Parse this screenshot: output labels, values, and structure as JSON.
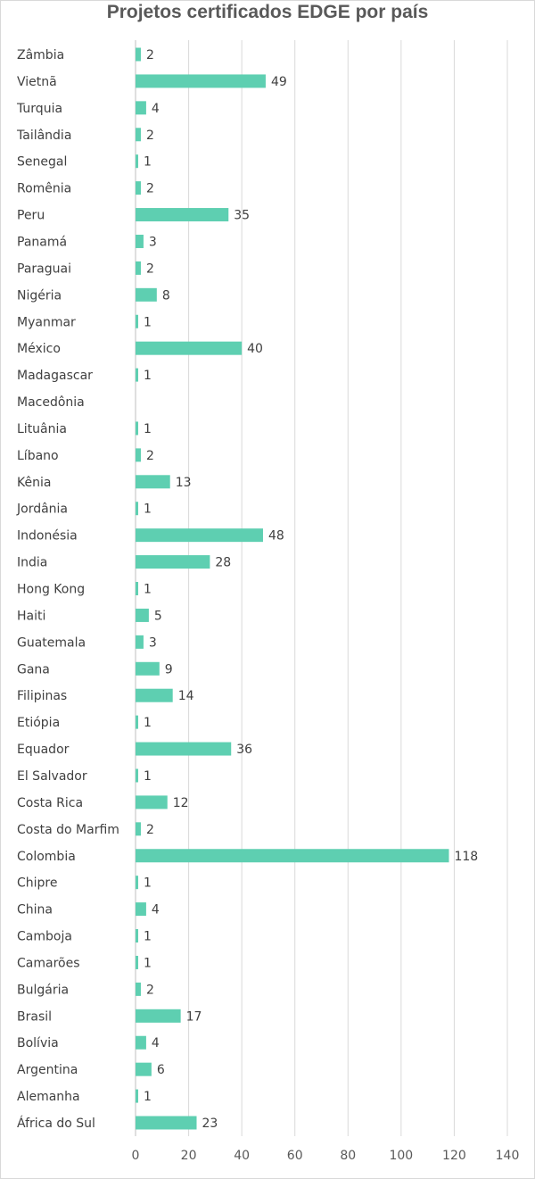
{
  "chart_data": {
    "type": "bar",
    "orientation": "horizontal",
    "title": "Projetos certificados EDGE por país",
    "xlabel": "",
    "ylabel": "",
    "xlim": [
      0,
      140
    ],
    "xticks": [
      0,
      20,
      40,
      60,
      80,
      100,
      120,
      140
    ],
    "grid": true,
    "legend": "none",
    "bar_color": "#5ecfb1",
    "categories": [
      "Zâmbia",
      "Vietnã",
      "Turquia",
      "Tailândia",
      "Senegal",
      "Romênia",
      "Peru",
      "Panamá",
      "Paraguai",
      "Nigéria",
      "Myanmar",
      "México",
      "Madagascar",
      "Macedônia",
      "Lituânia",
      "Líbano",
      "Kênia",
      "Jordânia",
      "Indonésia",
      "India",
      "Hong Kong",
      "Haiti",
      "Guatemala",
      "Gana",
      "Filipinas",
      "Etiópia",
      "Equador",
      "El Salvador",
      "Costa Rica",
      "Costa do Marfim",
      "Colombia",
      "Chipre",
      "China",
      "Camboja",
      "Camarões",
      "Bulgária",
      "Brasil",
      "Bolívia",
      "Argentina",
      "Alemanha",
      "África do Sul"
    ],
    "values": [
      2,
      49,
      4,
      2,
      1,
      2,
      35,
      3,
      2,
      8,
      1,
      40,
      1,
      null,
      1,
      2,
      13,
      1,
      48,
      28,
      1,
      5,
      3,
      9,
      14,
      1,
      36,
      1,
      12,
      2,
      118,
      1,
      4,
      1,
      1,
      2,
      17,
      4,
      6,
      1,
      23
    ]
  }
}
